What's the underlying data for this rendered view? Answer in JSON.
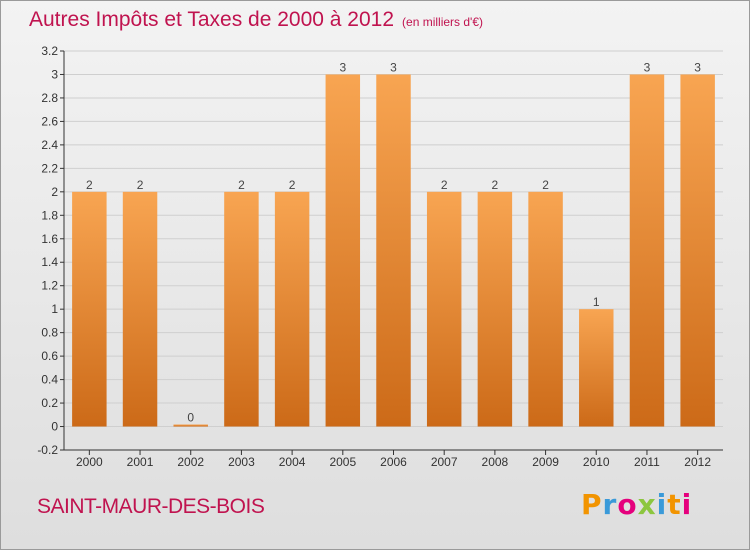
{
  "page": {
    "title": "Autres Impôts et Taxes de 2000 à 2012",
    "subtitle": "(en milliers d'€)",
    "commune": "SAINT-MAUR-DES-BOIS",
    "logo_text": "Proxiti"
  },
  "colors": {
    "accent": "#c0134f",
    "bar_top": "#f8a552",
    "bar_bottom": "#cc6a18",
    "axis": "#333333",
    "grid": "#cfcfcf"
  },
  "chart_data": {
    "type": "bar",
    "categories": [
      "2000",
      "2001",
      "2002",
      "2003",
      "2004",
      "2005",
      "2006",
      "2007",
      "2008",
      "2009",
      "2010",
      "2011",
      "2012"
    ],
    "values": [
      2,
      2,
      0,
      2,
      2,
      3,
      3,
      2,
      2,
      2,
      1,
      3,
      3
    ],
    "data_labels": [
      "2",
      "2",
      "0",
      "2",
      "2",
      "3",
      "3",
      "2",
      "2",
      "2",
      "1",
      "3",
      "3"
    ],
    "ylim": [
      -0.2,
      3.2
    ],
    "yticks": [
      -0.2,
      0,
      0.2,
      0.4,
      0.6,
      0.8,
      1,
      1.2,
      1.4,
      1.6,
      1.8,
      2,
      2.2,
      2.4,
      2.6,
      2.8,
      3,
      3.2
    ],
    "ytick_labels": [
      "-0.2",
      "0",
      "0.2",
      "0.4",
      "0.6",
      "0.8",
      "1",
      "1.2",
      "1.4",
      "1.6",
      "1.8",
      "2",
      "2.2",
      "2.4",
      "2.6",
      "2.8",
      "3",
      "3.2"
    ],
    "grid": true,
    "legend": "none"
  }
}
